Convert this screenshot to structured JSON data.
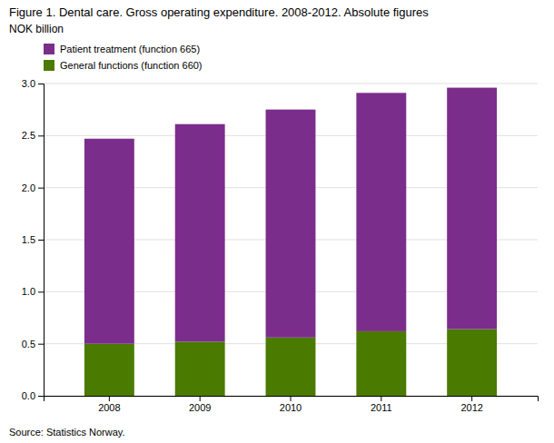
{
  "chart_data": {
    "type": "bar",
    "stacked": true,
    "title": "Figure 1. Dental care. Gross operating expenditure. 2008-2012. Absolute figures",
    "subtitle": "NOK billion",
    "annotations": [
      "Source: Statistics Norway."
    ],
    "categories": [
      "2008",
      "2009",
      "2010",
      "2011",
      "2012"
    ],
    "series": [
      {
        "name": "General functions (function 660)",
        "color": "#4a7a00",
        "values": [
          0.5,
          0.52,
          0.56,
          0.62,
          0.64
        ]
      },
      {
        "name": "Patient treatment (function 665)",
        "color": "#7b2d8b",
        "values": [
          1.97,
          2.09,
          2.19,
          2.29,
          2.32
        ]
      }
    ],
    "ylim": [
      0,
      3.0
    ],
    "yticks": [
      {
        "value": 0.0,
        "label": "0.0"
      },
      0.5,
      {
        "value": 1.0,
        "label": "1.0"
      },
      1.5,
      {
        "value": 2.0,
        "label": "2.0"
      },
      2.5,
      {
        "value": 3.0,
        "label": "3.0"
      }
    ],
    "grid": true,
    "legend": "upper left"
  }
}
